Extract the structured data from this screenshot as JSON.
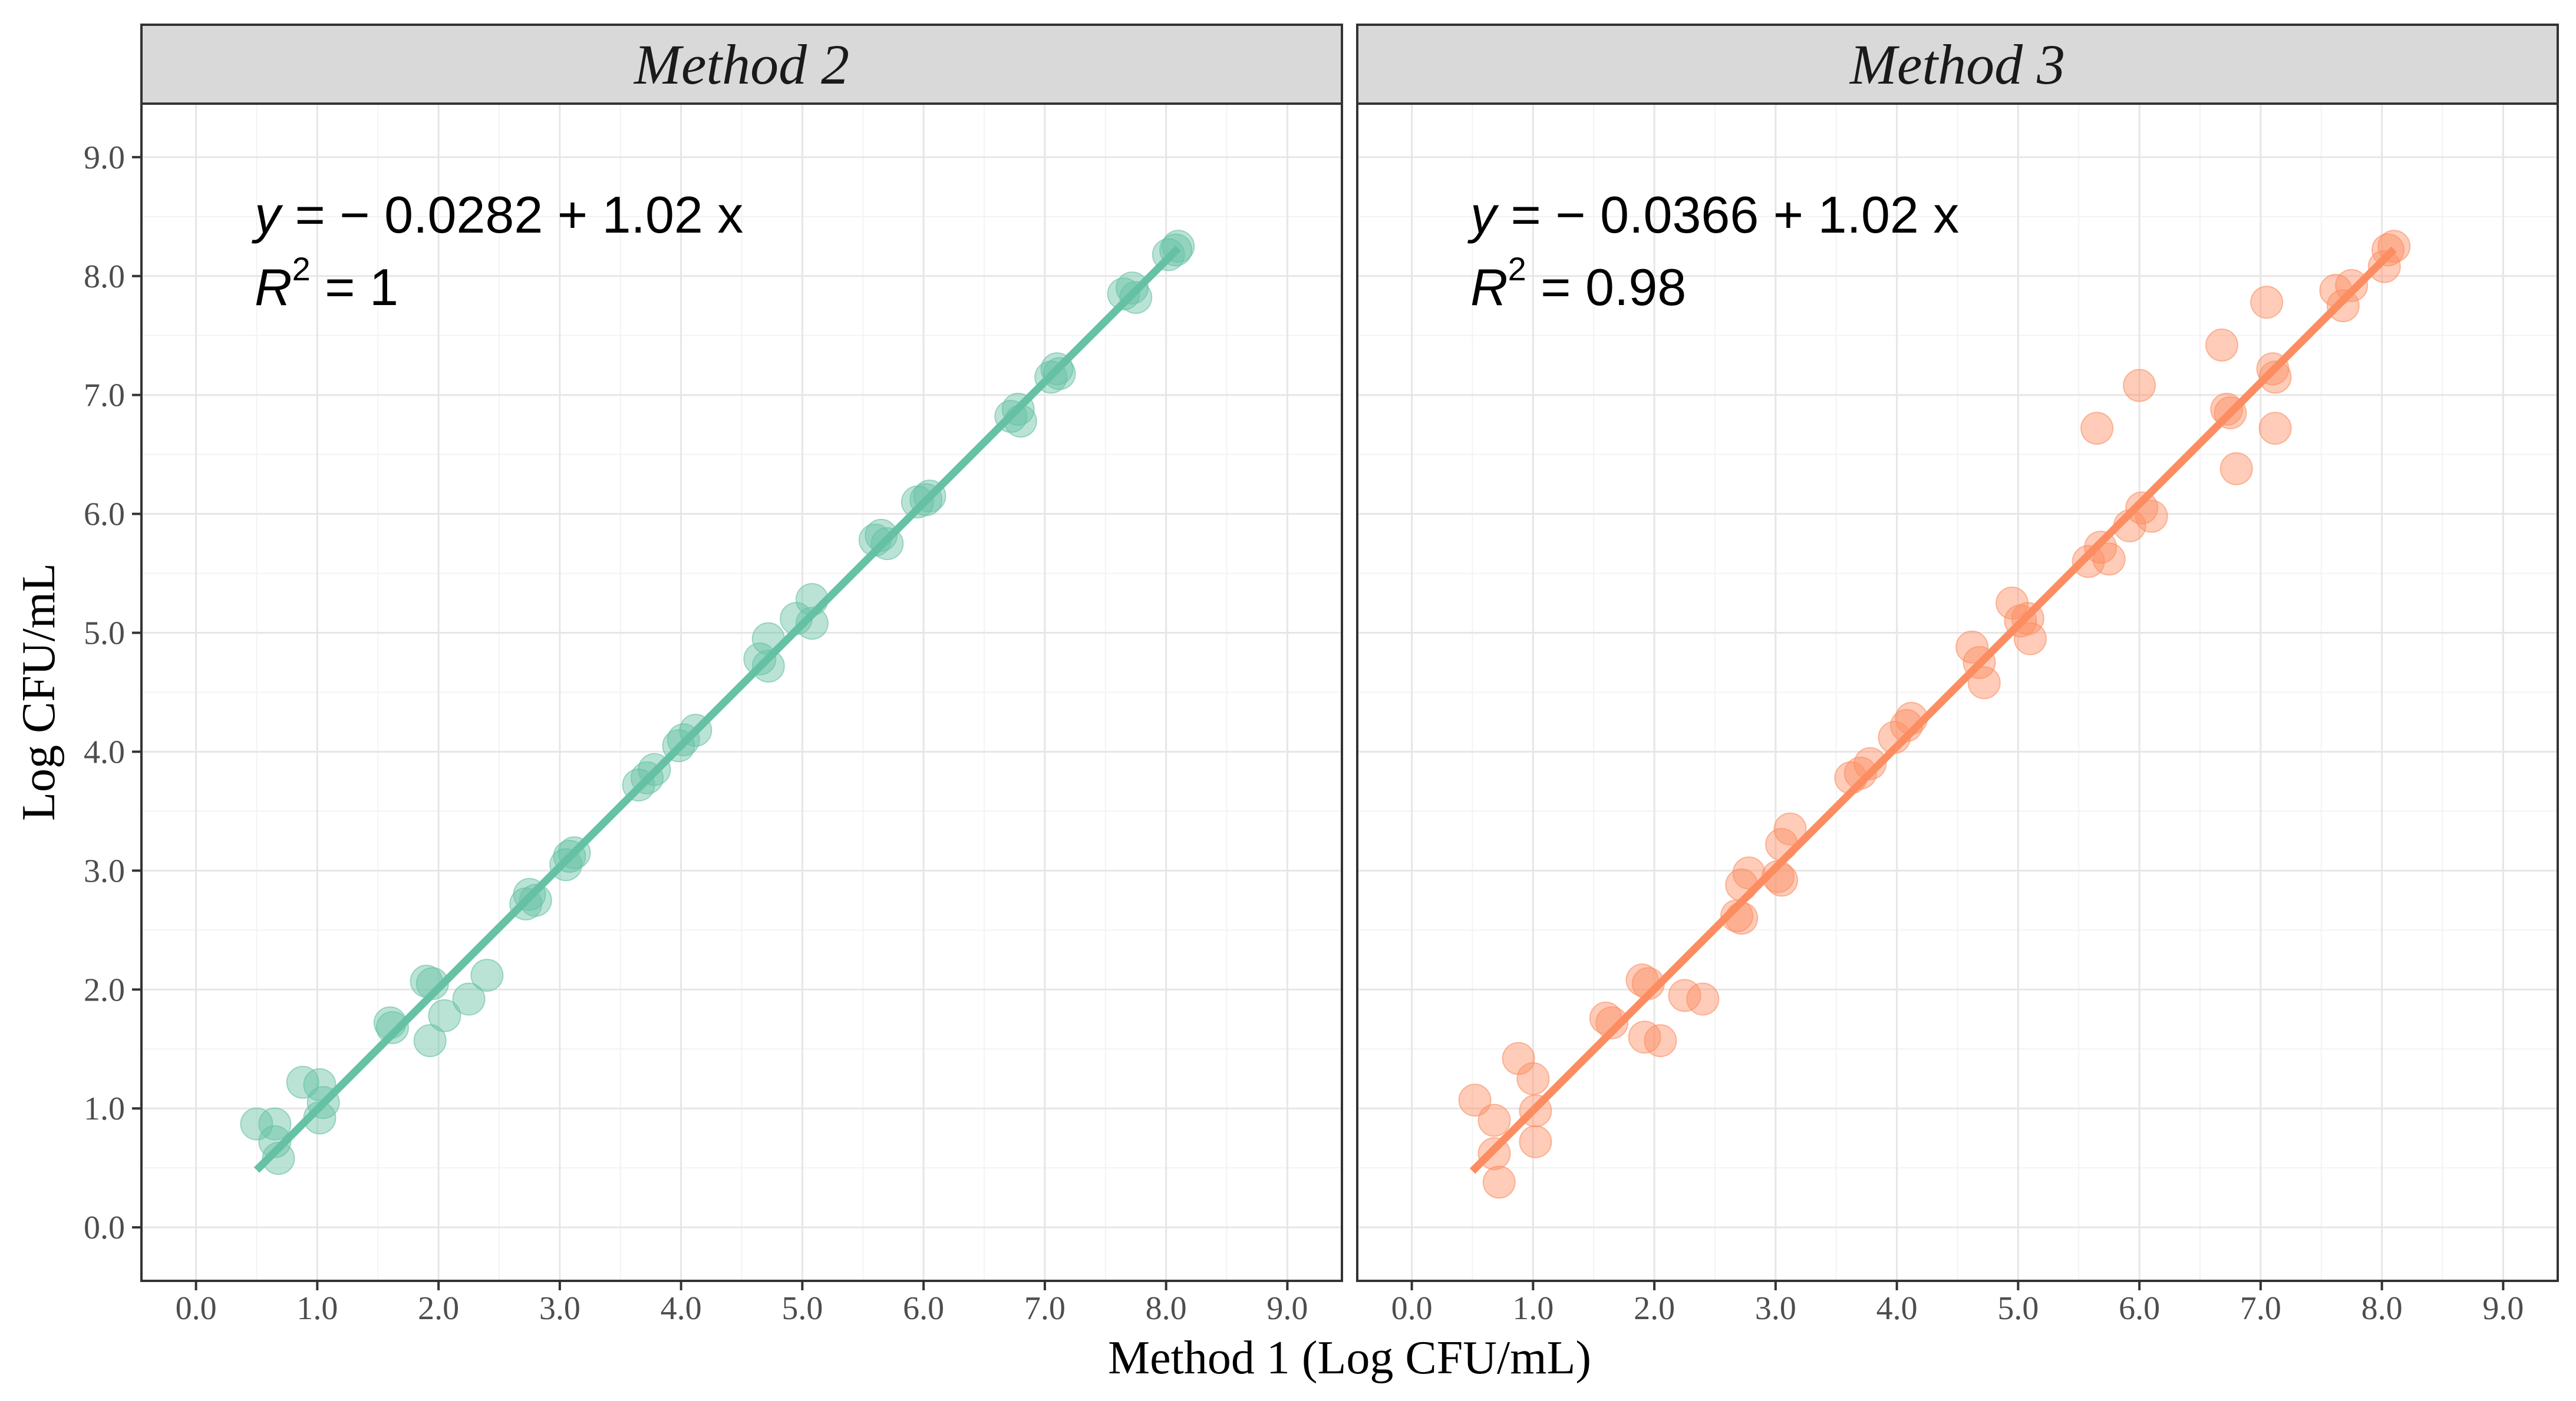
{
  "chart_data": {
    "type": "scatter",
    "xlabel": "Method 1 (Log CFU/mL)",
    "ylabel": "Log CFU/mL",
    "xlim": [
      -0.45,
      9.45
    ],
    "ylim": [
      -0.45,
      9.45
    ],
    "x_ticks": [
      "0.0",
      "1.0",
      "2.0",
      "3.0",
      "4.0",
      "5.0",
      "6.0",
      "7.0",
      "8.0",
      "9.0"
    ],
    "y_ticks": [
      "0.0",
      "1.0",
      "2.0",
      "3.0",
      "4.0",
      "5.0",
      "6.0",
      "7.0",
      "8.0",
      "9.0"
    ],
    "grid": true,
    "panels": [
      {
        "strip_label": "Method 2",
        "color": "#66c2a5",
        "equation_lhs": "y",
        "equation_rhs": " = − 0.0282 + 1.02 x",
        "r2_lhs": "R",
        "r2_exp": "2",
        "r2_rhs": " = 1",
        "fit": {
          "intercept": -0.0282,
          "slope": 1.02,
          "x_start": 0.5,
          "x_end": 8.1
        },
        "points": [
          [
            0.5,
            0.87
          ],
          [
            0.65,
            0.87
          ],
          [
            0.65,
            0.72
          ],
          [
            0.68,
            0.58
          ],
          [
            0.88,
            1.22
          ],
          [
            1.02,
            1.2
          ],
          [
            1.02,
            0.92
          ],
          [
            1.05,
            1.05
          ],
          [
            1.6,
            1.72
          ],
          [
            1.62,
            1.68
          ],
          [
            1.9,
            2.07
          ],
          [
            1.95,
            2.05
          ],
          [
            1.93,
            1.57
          ],
          [
            2.05,
            1.78
          ],
          [
            2.25,
            1.92
          ],
          [
            2.4,
            2.12
          ],
          [
            2.72,
            2.72
          ],
          [
            2.75,
            2.8
          ],
          [
            2.8,
            2.75
          ],
          [
            3.05,
            3.05
          ],
          [
            3.08,
            3.12
          ],
          [
            3.12,
            3.15
          ],
          [
            3.65,
            3.72
          ],
          [
            3.72,
            3.78
          ],
          [
            3.78,
            3.85
          ],
          [
            3.98,
            4.05
          ],
          [
            4.02,
            4.1
          ],
          [
            4.12,
            4.18
          ],
          [
            4.65,
            4.78
          ],
          [
            4.72,
            4.95
          ],
          [
            4.72,
            4.72
          ],
          [
            4.95,
            5.12
          ],
          [
            5.08,
            5.28
          ],
          [
            5.08,
            5.08
          ],
          [
            5.6,
            5.78
          ],
          [
            5.65,
            5.82
          ],
          [
            5.7,
            5.75
          ],
          [
            5.95,
            6.1
          ],
          [
            6.02,
            6.12
          ],
          [
            6.05,
            6.15
          ],
          [
            6.72,
            6.82
          ],
          [
            6.78,
            6.88
          ],
          [
            6.8,
            6.78
          ],
          [
            7.05,
            7.15
          ],
          [
            7.1,
            7.22
          ],
          [
            7.12,
            7.18
          ],
          [
            7.65,
            7.85
          ],
          [
            7.72,
            7.9
          ],
          [
            7.75,
            7.82
          ],
          [
            8.02,
            8.18
          ],
          [
            8.08,
            8.22
          ],
          [
            8.1,
            8.25
          ]
        ]
      },
      {
        "strip_label": "Method 3",
        "color": "#fc8d62",
        "equation_lhs": "y",
        "equation_rhs": " = − 0.0366 + 1.02 x",
        "r2_lhs": "R",
        "r2_exp": "2",
        "r2_rhs": " = 0.98",
        "fit": {
          "intercept": -0.0366,
          "slope": 1.02,
          "x_start": 0.5,
          "x_end": 8.1
        },
        "points": [
          [
            0.52,
            1.07
          ],
          [
            0.68,
            0.9
          ],
          [
            0.68,
            0.62
          ],
          [
            0.72,
            0.38
          ],
          [
            0.88,
            1.42
          ],
          [
            1.0,
            1.25
          ],
          [
            1.02,
            0.98
          ],
          [
            1.02,
            0.72
          ],
          [
            1.6,
            1.76
          ],
          [
            1.65,
            1.72
          ],
          [
            1.9,
            2.08
          ],
          [
            1.95,
            2.05
          ],
          [
            1.92,
            1.6
          ],
          [
            2.05,
            1.57
          ],
          [
            2.25,
            1.95
          ],
          [
            2.4,
            1.92
          ],
          [
            2.68,
            2.62
          ],
          [
            2.72,
            2.88
          ],
          [
            2.78,
            2.98
          ],
          [
            2.72,
            2.6
          ],
          [
            3.02,
            2.95
          ],
          [
            3.05,
            3.22
          ],
          [
            3.12,
            3.35
          ],
          [
            3.05,
            2.92
          ],
          [
            3.62,
            3.78
          ],
          [
            3.7,
            3.82
          ],
          [
            3.78,
            3.9
          ],
          [
            3.98,
            4.12
          ],
          [
            4.08,
            4.22
          ],
          [
            4.12,
            4.28
          ],
          [
            4.62,
            4.88
          ],
          [
            4.68,
            4.75
          ],
          [
            4.72,
            4.58
          ],
          [
            4.95,
            5.25
          ],
          [
            5.02,
            5.1
          ],
          [
            5.1,
            4.95
          ],
          [
            5.08,
            5.12
          ],
          [
            5.58,
            5.6
          ],
          [
            5.65,
            6.72
          ],
          [
            5.68,
            5.72
          ],
          [
            5.75,
            5.62
          ],
          [
            5.92,
            5.9
          ],
          [
            6.0,
            7.08
          ],
          [
            6.02,
            6.05
          ],
          [
            6.1,
            5.98
          ],
          [
            6.68,
            7.42
          ],
          [
            6.72,
            6.88
          ],
          [
            6.75,
            6.85
          ],
          [
            6.8,
            6.38
          ],
          [
            7.05,
            7.78
          ],
          [
            7.1,
            7.22
          ],
          [
            7.12,
            7.15
          ],
          [
            7.12,
            6.72
          ],
          [
            7.62,
            7.88
          ],
          [
            7.68,
            7.75
          ],
          [
            7.75,
            7.92
          ],
          [
            8.02,
            8.08
          ],
          [
            8.05,
            8.22
          ],
          [
            8.1,
            8.25
          ]
        ]
      }
    ]
  }
}
